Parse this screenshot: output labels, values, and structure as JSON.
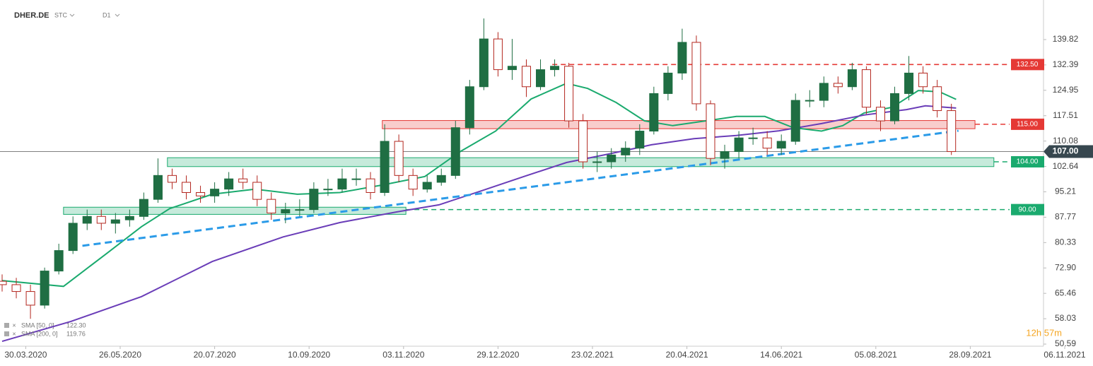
{
  "chart_data": {
    "type": "candlestick",
    "symbol": "DHER.DE",
    "instrument_type": "STC",
    "interval": "D1",
    "countdown": "12h 57m",
    "xlim": [
      0,
      450
    ],
    "ylim": [
      49.97,
      151.41
    ],
    "xticks": [
      {
        "value": 10,
        "label": "30.03.2020"
      },
      {
        "value": 50,
        "label": "26.05.2020"
      },
      {
        "value": 90,
        "label": "20.07.2020"
      },
      {
        "value": 130,
        "label": "10.09.2020"
      },
      {
        "value": 170,
        "label": "03.11.2020"
      },
      {
        "value": 210,
        "label": "29.12.2020"
      },
      {
        "value": 250,
        "label": "23.02.2021"
      },
      {
        "value": 290,
        "label": "20.04.2021"
      },
      {
        "value": 330,
        "label": "14.06.2021"
      },
      {
        "value": 370,
        "label": "05.08.2021"
      },
      {
        "value": 410,
        "label": "28.09.2021"
      },
      {
        "value": 450,
        "label": "06.11.2021"
      }
    ],
    "yticks": [
      139.82,
      132.39,
      124.95,
      117.51,
      110.08,
      102.64,
      95.21,
      87.77,
      80.33,
      {
        "value": 72.9,
        "label": "72.90"
      },
      65.46,
      58.03,
      50.59
    ],
    "up_color": "#1f6e43",
    "down_color": "#b3261e",
    "x": [
      0,
      6,
      12,
      18,
      24,
      30,
      36,
      42,
      48,
      54,
      60,
      66,
      72,
      78,
      84,
      90,
      96,
      102,
      108,
      114,
      120,
      126,
      132,
      138,
      144,
      150,
      156,
      162,
      168,
      174,
      180,
      186,
      192,
      198,
      204,
      210,
      216,
      222,
      228,
      234,
      240,
      246,
      252,
      258,
      264,
      270,
      276,
      282,
      288,
      294,
      300,
      306,
      312,
      318,
      324,
      330,
      336,
      342,
      348,
      354,
      360,
      366,
      372,
      378,
      384,
      390,
      396,
      402
    ],
    "open": [
      69,
      68,
      66,
      62,
      72,
      78,
      86,
      88,
      86,
      87,
      88,
      93,
      100,
      98,
      95,
      94,
      96,
      99,
      98,
      93,
      89,
      90,
      90,
      96,
      96,
      99,
      99,
      95,
      110,
      100,
      96,
      98,
      100,
      114,
      126,
      140,
      131,
      132,
      126,
      131,
      132,
      116,
      104,
      104,
      106,
      108,
      113,
      124,
      130,
      139,
      121,
      105,
      107,
      111,
      111,
      108,
      110,
      122,
      122,
      127,
      126,
      131,
      120,
      116,
      124,
      130,
      126,
      119
    ],
    "high": [
      71,
      70,
      68,
      73,
      80,
      88,
      90,
      90,
      89,
      90,
      95,
      105,
      102,
      100,
      97,
      98,
      101,
      102,
      100,
      95,
      92,
      93,
      98,
      99,
      102,
      102,
      101,
      115,
      112,
      102,
      100,
      102,
      116,
      128,
      146,
      142,
      140,
      134,
      134,
      134,
      133,
      118,
      107,
      108,
      110,
      115,
      126,
      132,
      143,
      141,
      122,
      109,
      113,
      114,
      113,
      112,
      124,
      125,
      129,
      129,
      133,
      132,
      122,
      126,
      135,
      132,
      128,
      121
    ],
    "low": [
      66,
      64,
      58,
      61,
      71,
      77,
      84,
      84,
      83,
      85,
      87,
      92,
      96,
      93,
      92,
      92,
      94,
      96,
      91,
      87,
      86,
      88,
      89,
      94,
      95,
      97,
      93,
      94,
      98,
      94,
      95,
      97,
      99,
      112,
      125,
      129,
      128,
      123,
      125,
      129,
      114,
      102,
      101,
      102,
      104,
      106,
      112,
      122,
      128,
      119,
      103,
      102,
      105,
      109,
      106,
      106,
      109,
      120,
      120,
      124,
      125,
      118,
      113,
      115,
      122,
      124,
      117,
      106
    ],
    "close": [
      68,
      66,
      62,
      72,
      78,
      86,
      88,
      86,
      87,
      88,
      93,
      100,
      98,
      95,
      94,
      96,
      99,
      98,
      93,
      89,
      90,
      90,
      96,
      96,
      99,
      99,
      95,
      110,
      100,
      96,
      98,
      100,
      114,
      126,
      140,
      131,
      132,
      126,
      131,
      132,
      116,
      104,
      104,
      106,
      108,
      113,
      124,
      130,
      139,
      121,
      105,
      107,
      111,
      111,
      108,
      110,
      122,
      122,
      127,
      126,
      131,
      120,
      116,
      124,
      130,
      126,
      119,
      107
    ],
    "sma": [
      {
        "name": "SMA [50, 0]",
        "color": "#1aaa6e",
        "legend_value_label": "122.30",
        "x": [
          0,
          26,
          44,
          59,
          71,
          89,
          107,
          125,
          143,
          161,
          179,
          194,
          209,
          224,
          239,
          248,
          260,
          272,
          284,
          296,
          311,
          323,
          335,
          347,
          356,
          365,
          377,
          388,
          397,
          404
        ],
        "values": [
          69.2,
          67.5,
          77,
          85,
          90.3,
          94.5,
          96,
          94.5,
          95,
          97.2,
          99.7,
          107,
          113,
          122.4,
          127,
          125.5,
          121.4,
          116,
          114.6,
          115.8,
          117.3,
          117.3,
          114,
          113,
          114.6,
          118.3,
          120,
          124.9,
          124.5,
          122.3
        ]
      },
      {
        "name": "SMA [200, 0]",
        "color": "#6a3db8",
        "legend_value_label": "119.76",
        "x": [
          0,
          29,
          59,
          89,
          119,
          143,
          167,
          185,
          203,
          221,
          239,
          257,
          275,
          293,
          311,
          329,
          347,
          365,
          383,
          391,
          404
        ],
        "values": [
          51.4,
          57.2,
          64.5,
          74.8,
          82,
          86.2,
          89.3,
          91.4,
          95.5,
          99.7,
          103.8,
          106.3,
          109,
          110.8,
          111.7,
          113.1,
          115.2,
          117.7,
          119.3,
          120.4,
          119.76
        ]
      }
    ],
    "levels": [
      {
        "value": 132.5,
        "label": "132.50",
        "color": "#e53935",
        "x0": 233
      },
      {
        "value": 115,
        "label": "115.00",
        "color": "#e53935",
        "x0": 412
      },
      {
        "value": 104,
        "label": "104.00",
        "color": "#1aaa6e",
        "x0": 420
      },
      {
        "value": 90,
        "label": "90.00",
        "color": "#1aaa6e",
        "x0": 171
      }
    ],
    "zones": [
      {
        "x0": 161,
        "x1": 412,
        "y0": 113.7,
        "y1": 116.1,
        "color": "#e53935"
      },
      {
        "x0": 70,
        "x1": 420,
        "y0": 102.6,
        "y1": 105.2,
        "color": "#1aaa6e"
      },
      {
        "x0": 26,
        "x1": 171,
        "y0": 88.6,
        "y1": 90.7,
        "color": "#1aaa6e"
      }
    ],
    "trendline": {
      "x0": 34,
      "y0": 79.4,
      "x1": 405,
      "y1": 113.1,
      "color": "#2b9be8"
    },
    "last_price": 107,
    "last_price_label": "107.00"
  }
}
